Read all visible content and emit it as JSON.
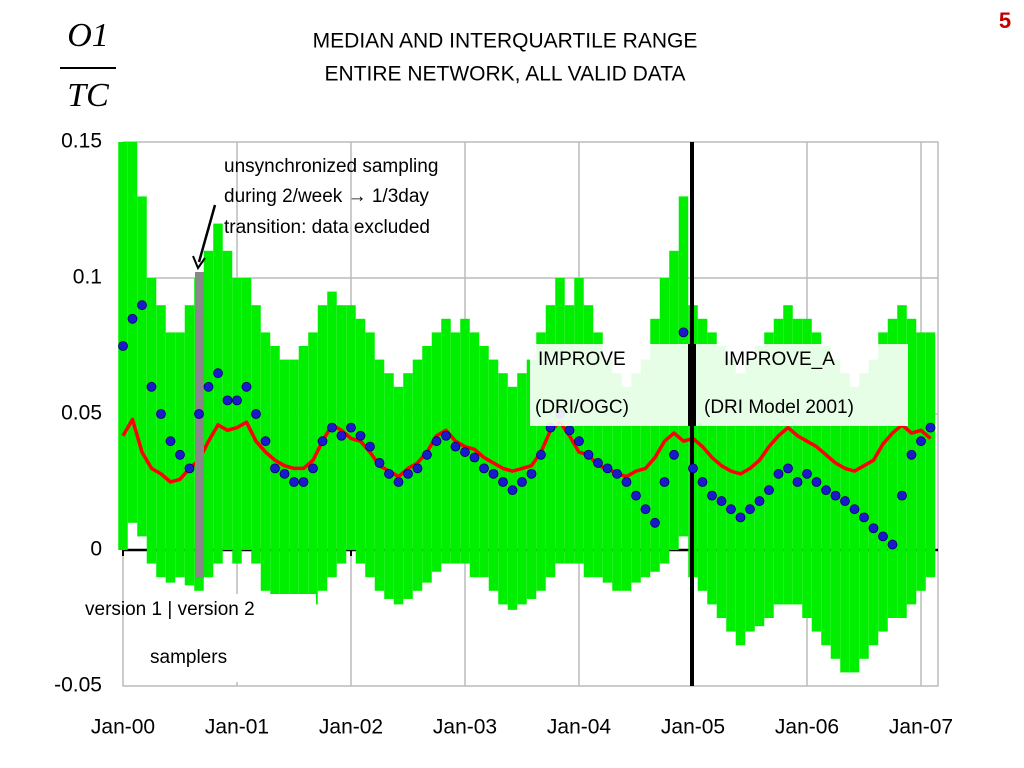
{
  "page_number": "5",
  "chart_data": {
    "type": "line",
    "title": "MEDIAN AND INTERQUARTILE RANGE",
    "subtitle": "ENTIRE NETWORK, ALL VALID DATA",
    "y_label": {
      "numerator": "O1",
      "denominator": "TC"
    },
    "ylim": [
      -0.05,
      0.15
    ],
    "yticks": [
      -0.05,
      0,
      0.05,
      0.1,
      0.15
    ],
    "grid": true,
    "categories": [
      "Jan-00",
      null,
      null,
      null,
      null,
      null,
      null,
      null,
      null,
      null,
      null,
      null,
      "Jan-01",
      null,
      null,
      null,
      null,
      null,
      null,
      null,
      null,
      null,
      null,
      null,
      "Jan-02",
      null,
      null,
      null,
      null,
      null,
      null,
      null,
      null,
      null,
      null,
      null,
      "Jan-03",
      null,
      null,
      null,
      null,
      null,
      null,
      null,
      null,
      null,
      null,
      null,
      "Jan-04",
      null,
      null,
      null,
      null,
      null,
      null,
      null,
      null,
      null,
      null,
      null,
      "Jan-05",
      null,
      null,
      null,
      null,
      null,
      null,
      null,
      null,
      null,
      null,
      null,
      "Jan-06",
      null,
      null,
      null,
      null,
      null,
      null,
      null,
      null,
      null,
      null,
      null,
      "Jan-07",
      null
    ],
    "range": {
      "color": "#00ee00",
      "high": [
        0.15,
        0.15,
        0.13,
        0.1,
        0.09,
        0.08,
        0.08,
        0.09,
        0.1,
        0.11,
        0.12,
        0.11,
        0.1,
        0.1,
        0.09,
        0.08,
        0.075,
        0.07,
        0.07,
        0.075,
        0.08,
        0.09,
        0.095,
        0.09,
        0.09,
        0.085,
        0.08,
        0.07,
        0.065,
        0.06,
        0.065,
        0.07,
        0.075,
        0.08,
        0.085,
        0.08,
        0.085,
        0.08,
        0.075,
        0.07,
        0.065,
        0.06,
        0.065,
        0.07,
        0.08,
        0.09,
        0.1,
        0.09,
        0.1,
        0.09,
        0.08,
        0.07,
        0.065,
        0.06,
        0.065,
        0.07,
        0.085,
        0.1,
        0.11,
        0.13,
        0.09,
        0.085,
        0.08,
        0.075,
        0.07,
        0.065,
        0.07,
        0.075,
        0.08,
        0.085,
        0.09,
        0.085,
        0.085,
        0.08,
        0.075,
        0.07,
        0.065,
        0.06,
        0.065,
        0.07,
        0.08,
        0.085,
        0.09,
        0.085,
        0.08,
        0.08
      ],
      "low": [
        0.0,
        0.01,
        0.005,
        -0.005,
        -0.01,
        -0.012,
        -0.01,
        -0.013,
        -0.015,
        -0.01,
        -0.005,
        0.0,
        -0.005,
        0.0,
        -0.005,
        -0.015,
        -0.02,
        -0.025,
        -0.03,
        -0.025,
        -0.02,
        -0.015,
        -0.01,
        -0.005,
        0.0,
        -0.005,
        -0.01,
        -0.015,
        -0.018,
        -0.02,
        -0.018,
        -0.015,
        -0.012,
        -0.008,
        -0.005,
        -0.005,
        -0.005,
        -0.01,
        -0.01,
        -0.015,
        -0.02,
        -0.022,
        -0.02,
        -0.018,
        -0.015,
        -0.01,
        -0.005,
        -0.005,
        -0.005,
        -0.01,
        -0.01,
        -0.012,
        -0.015,
        -0.015,
        -0.012,
        -0.01,
        -0.008,
        -0.005,
        0.0,
        0.005,
        -0.01,
        -0.015,
        -0.02,
        -0.025,
        -0.03,
        -0.035,
        -0.03,
        -0.028,
        -0.025,
        -0.02,
        -0.02,
        -0.02,
        -0.025,
        -0.03,
        -0.035,
        -0.04,
        -0.045,
        -0.045,
        -0.04,
        -0.035,
        -0.03,
        -0.025,
        -0.025,
        -0.02,
        -0.015,
        -0.01
      ]
    },
    "series": [
      {
        "color": "#ff0000",
        "kind": "line",
        "values": [
          0.042,
          0.048,
          0.036,
          0.03,
          0.028,
          0.025,
          0.026,
          0.03,
          0.033,
          0.04,
          0.046,
          0.044,
          0.045,
          0.047,
          0.04,
          0.036,
          0.033,
          0.031,
          0.03,
          0.03,
          0.033,
          0.04,
          0.046,
          0.044,
          0.041,
          0.04,
          0.036,
          0.031,
          0.029,
          0.027,
          0.03,
          0.032,
          0.036,
          0.042,
          0.044,
          0.04,
          0.038,
          0.037,
          0.034,
          0.032,
          0.03,
          0.029,
          0.03,
          0.031,
          0.036,
          0.044,
          0.047,
          0.042,
          0.036,
          0.035,
          0.031,
          0.03,
          0.028,
          0.027,
          0.029,
          0.03,
          0.034,
          0.04,
          0.043,
          0.04,
          0.041,
          0.038,
          0.034,
          0.031,
          0.029,
          0.028,
          0.03,
          0.033,
          0.038,
          0.042,
          0.045,
          0.042,
          0.04,
          0.038,
          0.035,
          0.032,
          0.03,
          0.029,
          0.031,
          0.033,
          0.039,
          0.043,
          0.046,
          0.043,
          0.044,
          0.041
        ]
      },
      {
        "color": "#1a1acc",
        "kind": "dots",
        "values": [
          0.075,
          0.085,
          0.09,
          0.06,
          0.05,
          0.04,
          0.035,
          0.03,
          0.05,
          0.06,
          0.065,
          0.055,
          0.055,
          0.06,
          0.05,
          0.04,
          0.03,
          0.028,
          0.025,
          0.025,
          0.03,
          0.04,
          0.045,
          0.042,
          0.045,
          0.042,
          0.038,
          0.032,
          0.028,
          0.025,
          0.028,
          0.03,
          0.035,
          0.04,
          0.042,
          0.038,
          0.036,
          0.034,
          0.03,
          0.028,
          0.025,
          0.022,
          0.025,
          0.028,
          0.035,
          0.045,
          0.05,
          0.044,
          0.04,
          0.035,
          0.032,
          0.03,
          0.028,
          0.025,
          0.02,
          0.015,
          0.01,
          0.025,
          0.035,
          0.08,
          0.03,
          0.025,
          0.02,
          0.018,
          0.015,
          0.012,
          0.015,
          0.018,
          0.022,
          0.028,
          0.03,
          0.025,
          0.028,
          0.025,
          0.022,
          0.02,
          0.018,
          0.015,
          0.012,
          0.008,
          0.005,
          0.002,
          0.02,
          0.035,
          0.04,
          0.045
        ]
      }
    ],
    "annotations": {
      "excluded": [
        "unsynchronized sampling",
        "during 2/week → 1/3day",
        "transition:  data excluded"
      ],
      "left_network": [
        "IMPROVE",
        "(DRI/OGC)"
      ],
      "right_network": [
        "IMPROVE_A",
        "(DRI Model 2001)"
      ],
      "samplers": [
        "version 1 | version 2",
        "samplers"
      ]
    }
  }
}
